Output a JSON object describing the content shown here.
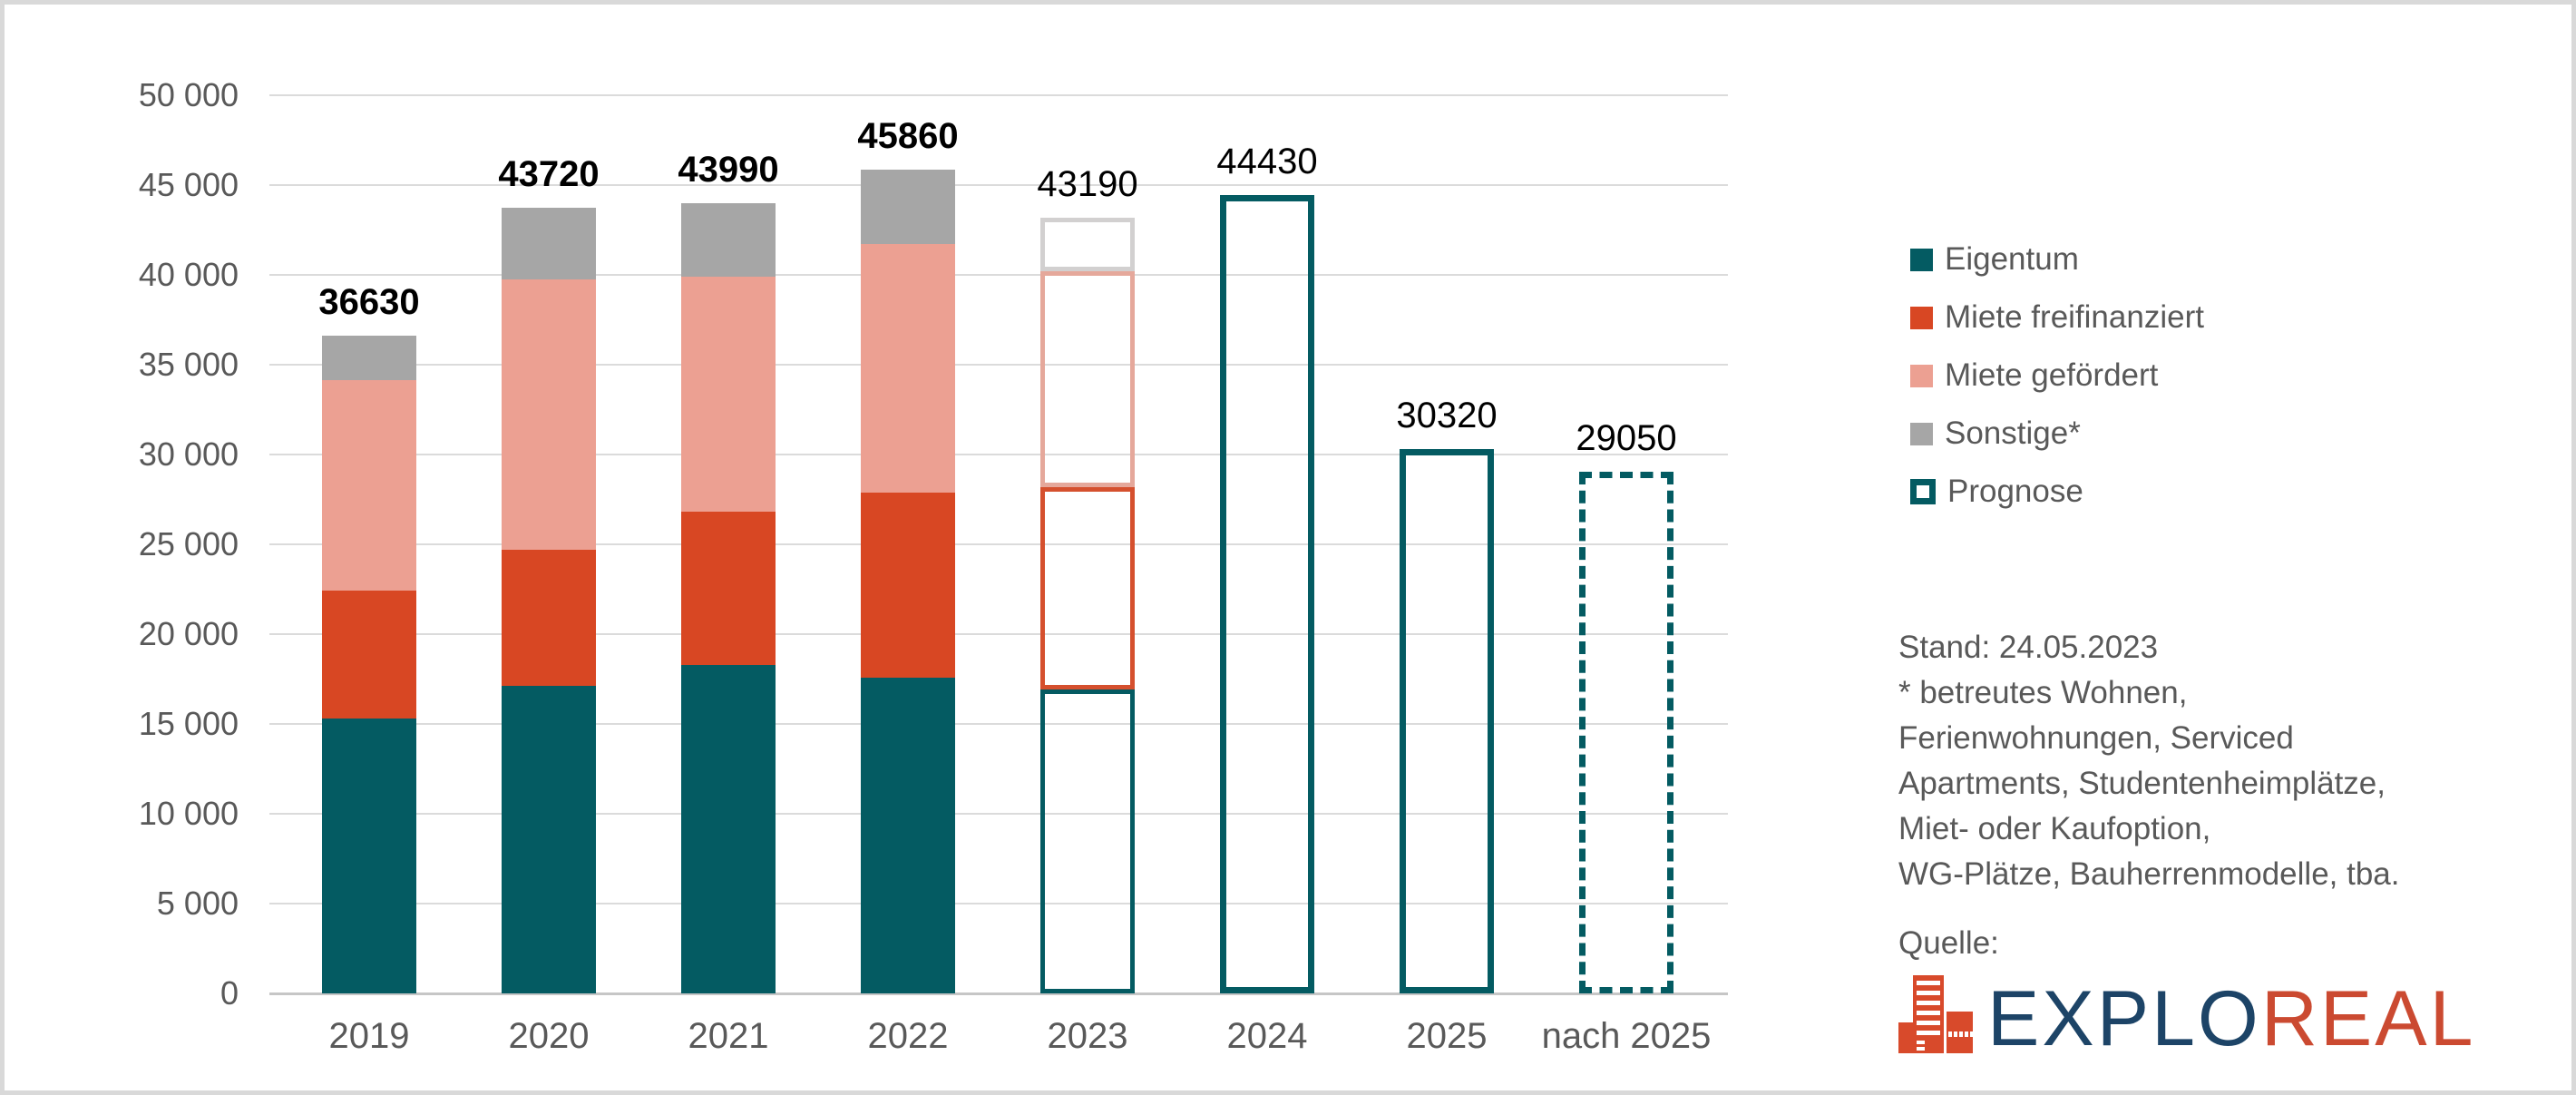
{
  "chart_data": {
    "type": "bar",
    "stacked": true,
    "title": "",
    "categories": [
      "2019",
      "2020",
      "2021",
      "2022",
      "2023",
      "2024",
      "2025",
      "nach 2025"
    ],
    "series": [
      {
        "name": "Eigentum",
        "color": "#045b62",
        "values": [
          15300,
          17100,
          18300,
          17600,
          16900,
          null,
          null,
          null
        ]
      },
      {
        "name": "Miete freifinanziert",
        "color": "#d84723",
        "values": [
          7130,
          7600,
          8500,
          10300,
          11300,
          null,
          null,
          null
        ]
      },
      {
        "name": "Miete gefördert",
        "color": "#eca092",
        "values": [
          11700,
          15050,
          13100,
          13800,
          12000,
          null,
          null,
          null
        ]
      },
      {
        "name": "Sonstige*",
        "color": "#a6a6a6",
        "values": [
          2500,
          3970,
          4090,
          4160,
          2990,
          null,
          null,
          null
        ]
      },
      {
        "name": "Prognose",
        "color": "#045b62",
        "values": [
          null,
          null,
          null,
          null,
          null,
          44430,
          30320,
          29050
        ]
      }
    ],
    "totals": [
      36630,
      43720,
      43990,
      45860,
      43190,
      44430,
      30320,
      29050
    ],
    "total_labels": [
      "36630",
      "43720",
      "43990",
      "45860",
      "43190",
      "44430",
      "30320",
      "29050"
    ],
    "total_label_bold": [
      true,
      true,
      true,
      true,
      false,
      false,
      false,
      false
    ],
    "forecast_outline": [
      false,
      false,
      false,
      false,
      true,
      true,
      true,
      true
    ],
    "dashed_outline_category": "nach 2025",
    "outline_colors": {
      "Eigentum": "#045b62",
      "Miete freifinanziert": "#d5502e",
      "Miete gefördert": "#e5a89b",
      "Sonstige*": "#d2d0d0"
    },
    "outline_total_color": "#045b62",
    "ylim": [
      0,
      50000
    ],
    "ytick_step": 5000,
    "ytick_labels": [
      "0",
      "5 000",
      "10 000",
      "15 000",
      "20 000",
      "25 000",
      "30 000",
      "35 000",
      "40 000",
      "45 000",
      "50 000"
    ],
    "grid": true,
    "legend_position": "right"
  },
  "legend": {
    "items": [
      {
        "label": "Eigentum",
        "swatch": "filled",
        "color": "#045b62"
      },
      {
        "label": "Miete freifinanziert",
        "swatch": "filled",
        "color": "#d84723"
      },
      {
        "label": "Miete gefördert",
        "swatch": "filled",
        "color": "#eca092"
      },
      {
        "label": "Sonstige*",
        "swatch": "filled",
        "color": "#a6a6a6"
      },
      {
        "label": "Prognose",
        "swatch": "outlined",
        "color": "#045b62"
      }
    ]
  },
  "notes": {
    "lines": [
      "Stand: 24.05.2023",
      "* betreutes Wohnen,",
      "Ferienwohnungen, Serviced",
      "Apartments, Studentenheimplätze,",
      "Miet- oder Kaufoption,",
      "WG-Plätze, Bauherrenmodelle, tba."
    ]
  },
  "source": {
    "label": "Quelle:",
    "logo": {
      "icon": "exploreal-building-icon",
      "text_primary": "EXPLO",
      "text_secondary": "REAL",
      "primary_color": "#1d4467",
      "secondary_color": "#cb4a31",
      "icon_color": "#d84a2b"
    }
  }
}
